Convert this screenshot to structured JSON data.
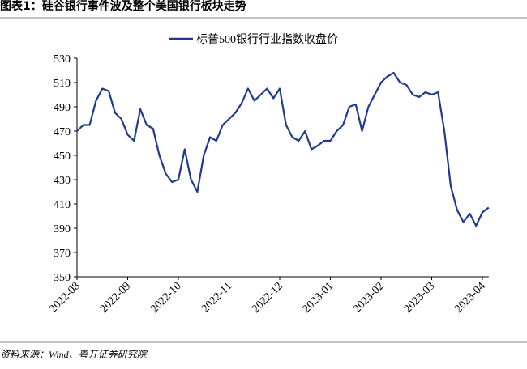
{
  "chart_data": {
    "type": "line",
    "title": "图表1：硅谷银行事件波及整个美国银行板块走势",
    "source": "资料来源：Wind、粤开证券研究院",
    "categories": [
      "2022-08",
      null,
      null,
      null,
      null,
      null,
      null,
      null,
      "2022-09",
      null,
      null,
      null,
      null,
      null,
      null,
      null,
      "2022-10",
      null,
      null,
      null,
      null,
      null,
      null,
      null,
      "2022-11",
      null,
      null,
      null,
      null,
      null,
      null,
      null,
      "2022-12",
      null,
      null,
      null,
      null,
      null,
      null,
      null,
      "2023-01",
      null,
      null,
      null,
      null,
      null,
      null,
      null,
      "2023-02",
      null,
      null,
      null,
      null,
      null,
      null,
      null,
      "2023-03",
      null,
      null,
      null,
      null,
      null,
      null,
      null,
      "2023-04",
      null
    ],
    "series": [
      {
        "name": "标普500银行行业指数收盘价",
        "color": "#1f3a8f",
        "values": [
          470,
          475,
          475,
          495,
          505,
          503,
          485,
          480,
          467,
          462,
          488,
          475,
          472,
          450,
          435,
          428,
          430,
          455,
          430,
          420,
          450,
          465,
          462,
          475,
          480,
          485,
          493,
          505,
          495,
          500,
          505,
          497,
          505,
          475,
          465,
          462,
          470,
          455,
          458,
          462,
          462,
          470,
          475,
          490,
          492,
          470,
          490,
          500,
          510,
          515,
          518,
          510,
          508,
          500,
          498,
          502,
          500,
          502,
          470,
          425,
          405,
          395,
          402,
          392,
          403,
          407
        ]
      }
    ],
    "ylim": [
      350,
      530
    ],
    "yticks": [
      350,
      370,
      390,
      410,
      430,
      450,
      470,
      490,
      510,
      530
    ],
    "legend": "top",
    "grid": false
  }
}
